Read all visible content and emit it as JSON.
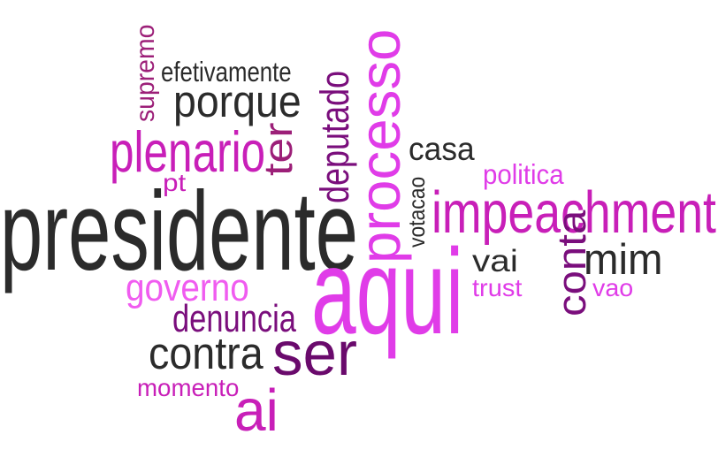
{
  "word_cloud": {
    "words": [
      {
        "text": "presidente",
        "color": "#2b2b2b",
        "weight": 100,
        "orientation": "horizontal"
      },
      {
        "text": "aqui",
        "color": "#e03ce8",
        "weight": 92,
        "orientation": "horizontal"
      },
      {
        "text": "processo",
        "color": "#e03ce8",
        "weight": 70,
        "orientation": "vertical"
      },
      {
        "text": "impeachment",
        "color": "#c81fb8",
        "weight": 62,
        "orientation": "horizontal"
      },
      {
        "text": "ser",
        "color": "#6a0a6c",
        "weight": 58,
        "orientation": "horizontal"
      },
      {
        "text": "ai",
        "color": "#c81fb8",
        "weight": 55,
        "orientation": "horizontal"
      },
      {
        "text": "plenario",
        "color": "#c81fb8",
        "weight": 50,
        "orientation": "horizontal"
      },
      {
        "text": "porque",
        "color": "#2b2b2b",
        "weight": 45,
        "orientation": "horizontal"
      },
      {
        "text": "contra",
        "color": "#2b2b2b",
        "weight": 44,
        "orientation": "horizontal"
      },
      {
        "text": "mim",
        "color": "#2b2b2b",
        "weight": 44,
        "orientation": "horizontal"
      },
      {
        "text": "ter",
        "color": "#9c1f78",
        "weight": 44,
        "orientation": "vertical"
      },
      {
        "text": "deputado",
        "color": "#7a0e7c",
        "weight": 40,
        "orientation": "vertical"
      },
      {
        "text": "conta",
        "color": "#7a0e7c",
        "weight": 40,
        "orientation": "vertical"
      },
      {
        "text": "governo",
        "color": "#f05cf0",
        "weight": 36,
        "orientation": "horizontal"
      },
      {
        "text": "denuncia",
        "color": "#7a0e7c",
        "weight": 36,
        "orientation": "horizontal"
      },
      {
        "text": "casa",
        "color": "#2b2b2b",
        "weight": 34,
        "orientation": "horizontal"
      },
      {
        "text": "politica",
        "color": "#e03ce8",
        "weight": 28,
        "orientation": "horizontal"
      },
      {
        "text": "vai",
        "color": "#2b2b2b",
        "weight": 28,
        "orientation": "horizontal"
      },
      {
        "text": "momento",
        "color": "#c81fb8",
        "weight": 26,
        "orientation": "horizontal"
      },
      {
        "text": "supremo",
        "color": "#9c1f78",
        "weight": 26,
        "orientation": "vertical"
      },
      {
        "text": "efetivamente",
        "color": "#2b2b2b",
        "weight": 24,
        "orientation": "horizontal"
      },
      {
        "text": "pt",
        "color": "#c81fb8",
        "weight": 22,
        "orientation": "horizontal"
      },
      {
        "text": "votacao",
        "color": "#2b2b2b",
        "weight": 20,
        "orientation": "vertical"
      },
      {
        "text": "trust",
        "color": "#e03ce8",
        "weight": 22,
        "orientation": "horizontal"
      },
      {
        "text": "vao",
        "color": "#e03ce8",
        "weight": 22,
        "orientation": "horizontal"
      }
    ]
  }
}
